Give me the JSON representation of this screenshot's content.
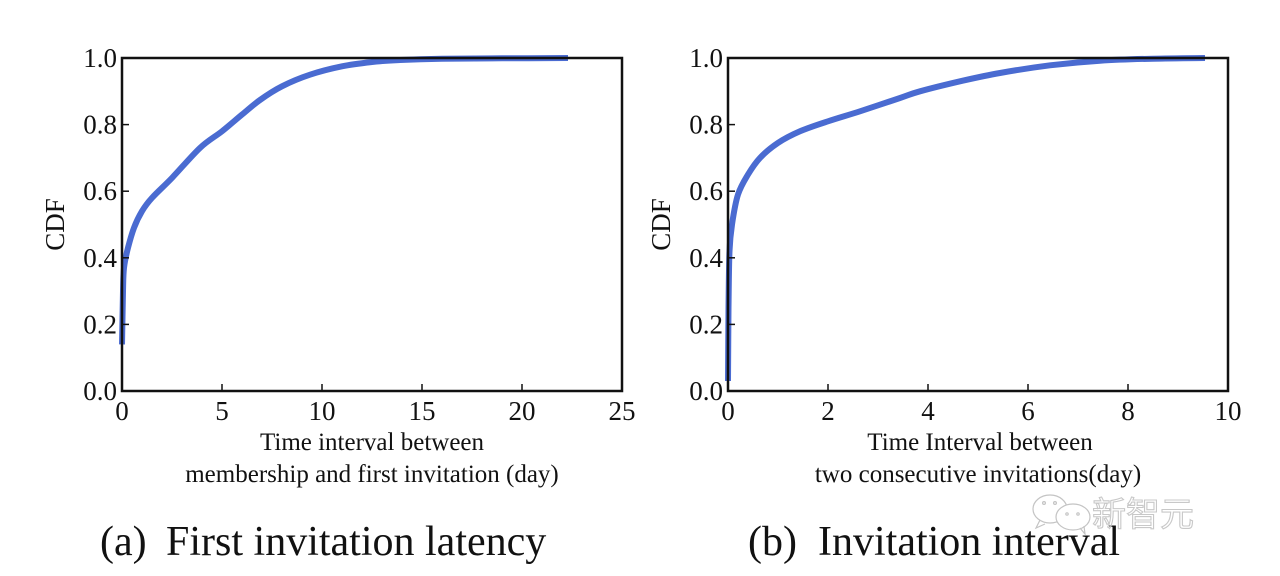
{
  "chart_data": [
    {
      "type": "line",
      "panel": "(a)",
      "caption": "First invitation latency",
      "caption_prefix": "(a)",
      "xlabel_lines": [
        "Time interval between",
        "membership and first invitation (day)"
      ],
      "ylabel": "CDF",
      "xlim": [
        0,
        25
      ],
      "ylim": [
        0.0,
        1.0
      ],
      "xticks": [
        "0",
        "5",
        "10",
        "15",
        "20",
        "25"
      ],
      "xtick_values": [
        0,
        5,
        10,
        15,
        20,
        25
      ],
      "yticks": [
        "0.0",
        "0.2",
        "0.4",
        "0.6",
        "0.8",
        "1.0"
      ],
      "ytick_values": [
        0.0,
        0.2,
        0.4,
        0.6,
        0.8,
        1.0
      ],
      "grid": false,
      "line_color": "#4a6bd1",
      "series": [
        {
          "name": "CDF",
          "x": [
            0.0,
            0.05,
            0.1,
            0.3,
            0.6,
            1.0,
            1.5,
            2.5,
            3.9,
            5.0,
            6.0,
            6.9,
            8.0,
            9.4,
            11.0,
            12.5,
            13.9,
            16.0,
            19.0,
            22.3
          ],
          "y": [
            0.14,
            0.3,
            0.37,
            0.43,
            0.49,
            0.54,
            0.58,
            0.64,
            0.73,
            0.78,
            0.83,
            0.874,
            0.915,
            0.95,
            0.975,
            0.988,
            0.994,
            0.998,
            0.999,
            1.0
          ]
        }
      ]
    },
    {
      "type": "line",
      "panel": "(b)",
      "caption": "Invitation interval",
      "caption_prefix": "(b)",
      "xlabel_lines": [
        "Time Interval between",
        "two consecutive invitations(day)"
      ],
      "ylabel": "CDF",
      "xlim": [
        0,
        10
      ],
      "ylim": [
        0.0,
        1.0
      ],
      "xticks": [
        "0",
        "2",
        "4",
        "6",
        "8",
        "10"
      ],
      "xtick_values": [
        0,
        2,
        4,
        6,
        8,
        10
      ],
      "yticks": [
        "0.0",
        "0.2",
        "0.4",
        "0.6",
        "0.8",
        "1.0"
      ],
      "ytick_values": [
        0.0,
        0.2,
        0.4,
        0.6,
        0.8,
        1.0
      ],
      "grid": false,
      "line_color": "#4a6bd1",
      "series": [
        {
          "name": "CDF",
          "x": [
            0.0,
            0.01,
            0.03,
            0.08,
            0.2,
            0.4,
            0.64,
            1.0,
            1.44,
            2.0,
            2.64,
            3.44,
            3.84,
            4.64,
            5.44,
            6.44,
            7.44,
            8.5,
            9.54
          ],
          "y": [
            0.03,
            0.25,
            0.42,
            0.5,
            0.59,
            0.65,
            0.7,
            0.745,
            0.78,
            0.81,
            0.84,
            0.88,
            0.9,
            0.93,
            0.955,
            0.978,
            0.992,
            0.998,
            1.0
          ]
        }
      ]
    }
  ],
  "watermark": {
    "text": "新智元",
    "icon": "wechat-logo-icon"
  }
}
